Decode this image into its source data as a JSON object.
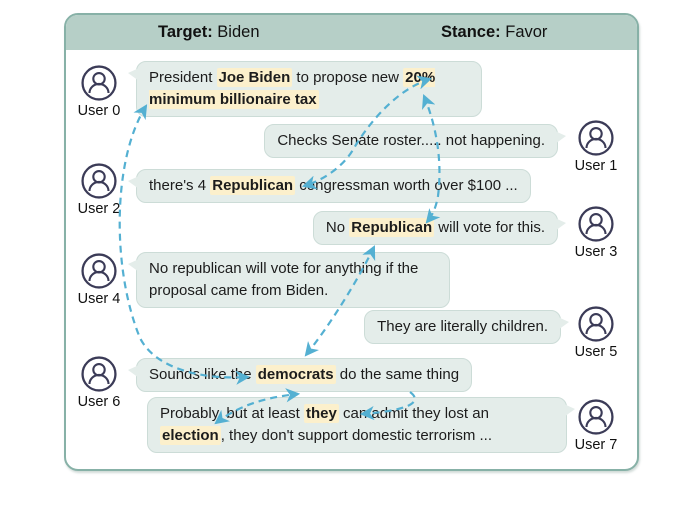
{
  "header": {
    "target_label": "Target:",
    "target_value": "Biden",
    "stance_label": "Stance:",
    "stance_value": "Favor"
  },
  "messages": [
    {
      "user": "User 0",
      "side": "left",
      "segments": [
        {
          "t": "President ",
          "h": false
        },
        {
          "t": "Joe Biden",
          "h": true
        },
        {
          "t": " to propose new ",
          "h": false
        },
        {
          "t": "20% minimum billionaire tax",
          "h": true
        }
      ]
    },
    {
      "user": "User 1",
      "side": "right",
      "segments": [
        {
          "t": "Checks Senate roster..... not happening.",
          "h": false
        }
      ]
    },
    {
      "user": "User 2",
      "side": "left",
      "segments": [
        {
          "t": "there's 4 ",
          "h": false
        },
        {
          "t": "Republican",
          "h": true
        },
        {
          "t": " congressman worth over $100 ...",
          "h": false
        }
      ]
    },
    {
      "user": "User 3",
      "side": "right",
      "segments": [
        {
          "t": "No ",
          "h": false
        },
        {
          "t": "Republican",
          "h": true
        },
        {
          "t": " will vote for this.",
          "h": false
        }
      ]
    },
    {
      "user": "User 4",
      "side": "left",
      "segments": [
        {
          "t": "No republican will vote for anything if the proposal came from Biden.",
          "h": false
        }
      ]
    },
    {
      "user": "User 5",
      "side": "right",
      "segments": [
        {
          "t": "They are literally children.",
          "h": false
        }
      ]
    },
    {
      "user": "User 6",
      "side": "left",
      "segments": [
        {
          "t": "Sounds like the ",
          "h": false
        },
        {
          "t": "democrats",
          "h": true
        },
        {
          "t": " do the same thing",
          "h": false
        }
      ]
    },
    {
      "user": "User 7",
      "side": "right",
      "segments": [
        {
          "t": "Probably, but at least ",
          "h": false
        },
        {
          "t": "they",
          "h": true
        },
        {
          "t": " can admit they lost an ",
          "h": false
        },
        {
          "t": "election",
          "h": true
        },
        {
          "t": ", they don't support domestic terrorism ...",
          "h": false
        }
      ]
    }
  ],
  "arrows": [
    {
      "from": "User 0: minimum billionaire tax",
      "to": "User 6: democrats",
      "bidirectional": true
    },
    {
      "from": "User 0: 20%",
      "to": "User 2: Republican",
      "bidirectional": true
    },
    {
      "from": "User 0: 20%",
      "to": "User 3: Republican",
      "bidirectional": true
    },
    {
      "from": "User 3: Republican",
      "to": "User 6: democrats",
      "bidirectional": true
    },
    {
      "from": "User 6: democrats",
      "to": "User 7: election",
      "bidirectional": true
    },
    {
      "from": "User 6: same thing",
      "to": "User 7: they",
      "bidirectional": false
    }
  ],
  "colors": {
    "header_bg": "#b6cfc7",
    "frame_border": "#87b1a7",
    "bubble_bg": "#e4edea",
    "highlight": "#fcf0cc",
    "arrow": "#54b0d2",
    "avatar_outline": "#3b3b57"
  }
}
